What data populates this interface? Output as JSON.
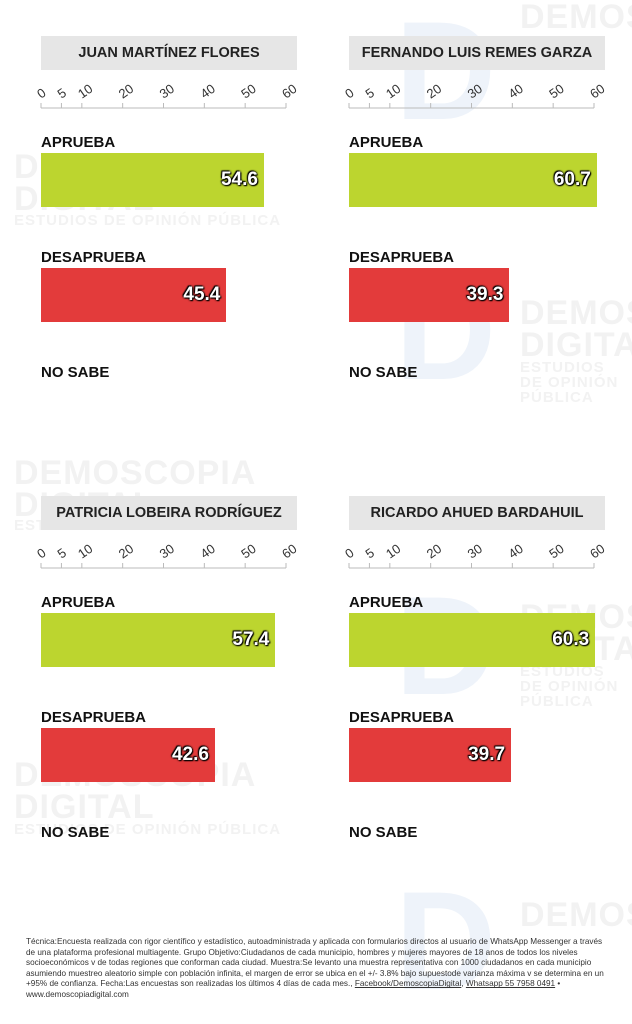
{
  "watermark": {
    "brand_line1": "DEMOSCOPIA",
    "brand_line2": "DIGITAL",
    "tagline": "ESTUDIOS DE OPINIÓN PÚBLICA",
    "logo_letter": "D"
  },
  "chart_data": [
    {
      "type": "bar",
      "title": "JUAN MARTÍNEZ FLORES",
      "categories": [
        "APRUEBA",
        "DESAPRUEBA",
        "NO SABE"
      ],
      "values": [
        54.6,
        45.4,
        null
      ],
      "value_labels": [
        "54.6",
        "45.4",
        ""
      ],
      "xlim": [
        0,
        60
      ],
      "ticks": [
        "0",
        "5",
        "10",
        "20",
        "30",
        "40",
        "50",
        "60"
      ]
    },
    {
      "type": "bar",
      "title": "FERNANDO LUIS REMES GARZA",
      "categories": [
        "APRUEBA",
        "DESAPRUEBA",
        "NO SABE"
      ],
      "values": [
        60.7,
        39.3,
        null
      ],
      "value_labels": [
        "60.7",
        "39.3",
        ""
      ],
      "xlim": [
        0,
        60
      ],
      "ticks": [
        "0",
        "5",
        "10",
        "20",
        "30",
        "40",
        "50",
        "60"
      ]
    },
    {
      "type": "bar",
      "title": "PATRICIA LOBEIRA RODRÍGUEZ",
      "categories": [
        "APRUEBA",
        "DESAPRUEBA",
        "NO SABE"
      ],
      "values": [
        57.4,
        42.6,
        null
      ],
      "value_labels": [
        "57.4",
        "42.6",
        ""
      ],
      "xlim": [
        0,
        60
      ],
      "ticks": [
        "0",
        "5",
        "10",
        "20",
        "30",
        "40",
        "50",
        "60"
      ]
    },
    {
      "type": "bar",
      "title": "RICARDO AHUED BARDAHUIL",
      "categories": [
        "APRUEBA",
        "DESAPRUEBA",
        "NO SABE"
      ],
      "values": [
        60.3,
        39.7,
        null
      ],
      "value_labels": [
        "60.3",
        "39.7",
        ""
      ],
      "xlim": [
        0,
        60
      ],
      "ticks": [
        "0",
        "5",
        "10",
        "20",
        "30",
        "40",
        "50",
        "60"
      ]
    }
  ],
  "colors": {
    "approve": "#bcd52f",
    "disapprove": "#e33b3b",
    "title_bg": "#e6e6e6",
    "axis": "#bbbbbb"
  },
  "footnote": {
    "text": "Técnica:Encuesta realizada con rigor científico y estadístico, autoadministrada y aplicada con formularios directos al usuario de WhatsApp Messenger a través de una plataforma profesional multiagente. Grupo Objetivo:Ciudadanos de cada municipio, hombres y mujeres mayores de 18 anos de todos los niveles socioeconómicos v de todas regiones que conforman cada ciudad. Muestra:Se levanto una muestra representativa con 1000 ciudadanos en cada municipio asumiendo muestreo aleatorio simple con población infinita, el margen de error se ubica en el +/- 3.8% bajo supuestode varianza máxima v se determina en un +95% de confianza. Fecha:Las encuestas son realizadas los últimos 4 días de cada mes., ",
    "link_facebook": "Facebook/DemoscopiaDigital",
    "separator": ", ",
    "link_whatsapp": "Whatsapp 55 7958 0491",
    "bullet": " • ",
    "website": "www.demoscopiadigital.com"
  }
}
